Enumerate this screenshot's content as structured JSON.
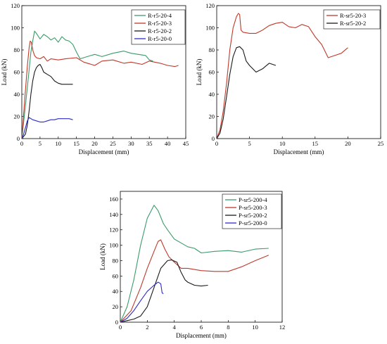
{
  "chart_data": [
    {
      "type": "line",
      "xlabel": "Displacement (mm)",
      "ylabel": "Load (kN)",
      "xlim": [
        0,
        45
      ],
      "ylim": [
        0,
        120
      ],
      "xticks": [
        0,
        5,
        10,
        15,
        20,
        25,
        30,
        35,
        40,
        45
      ],
      "yticks": [
        0,
        20,
        40,
        60,
        80,
        100,
        120
      ],
      "legend_position": "top-right",
      "series": [
        {
          "name": "R-r5-20-4",
          "color": "#3a9b6a",
          "x": [
            0,
            1,
            2,
            2.5,
            3,
            3.5,
            4,
            5,
            6,
            7,
            8,
            9,
            10,
            11,
            12,
            13,
            14,
            15,
            16,
            18,
            20,
            22,
            25,
            28,
            30,
            32,
            34,
            35,
            36
          ],
          "y": [
            0,
            30,
            62,
            78,
            88,
            97,
            95,
            90,
            94,
            92,
            89,
            91,
            87,
            92,
            89,
            88,
            85,
            78,
            72,
            74,
            76,
            74,
            77,
            79,
            77,
            76,
            75,
            71,
            70
          ]
        },
        {
          "name": "R-r5-20-3",
          "color": "#c0392b",
          "x": [
            0,
            0.8,
            1.5,
            2,
            2.3,
            2.6,
            3,
            3.5,
            4,
            5,
            6,
            7,
            8,
            10,
            12,
            15,
            17,
            20,
            22,
            25,
            28,
            30,
            33,
            35,
            38,
            40,
            42,
            43
          ],
          "y": [
            0,
            35,
            65,
            82,
            88,
            87,
            80,
            75,
            73,
            72,
            74,
            70,
            72,
            71,
            72,
            73,
            69,
            66,
            70,
            71,
            68,
            69,
            67,
            70,
            68,
            66,
            65,
            66
          ]
        },
        {
          "name": "R-r5-20-2",
          "color": "#1a1a1a",
          "x": [
            0,
            1,
            1.5,
            2,
            2.5,
            3,
            3.5,
            4,
            4.5,
            5,
            5.5,
            6,
            7,
            8,
            9,
            10,
            11,
            12,
            13,
            14
          ],
          "y": [
            0,
            4,
            12,
            25,
            40,
            52,
            60,
            64,
            66,
            67,
            64,
            60,
            58,
            56,
            52,
            50,
            49,
            49,
            49,
            49
          ]
        },
        {
          "name": "R-r5-20-0",
          "color": "#2c2cc8",
          "x": [
            0,
            0.5,
            1,
            1.5,
            2,
            3,
            4,
            5,
            6,
            7,
            8,
            9,
            10,
            11,
            12,
            13,
            14
          ],
          "y": [
            0,
            4,
            10,
            16,
            19,
            17,
            16,
            15,
            15,
            16,
            17,
            17,
            18,
            18,
            18,
            18,
            17
          ]
        }
      ]
    },
    {
      "type": "line",
      "xlabel": "Displacement (mm)",
      "ylabel": "Load (kN)",
      "xlim": [
        0,
        25
      ],
      "ylim": [
        0,
        120
      ],
      "xticks": [
        0,
        5,
        10,
        15,
        20,
        25
      ],
      "yticks": [
        0,
        20,
        40,
        60,
        80,
        100,
        120
      ],
      "legend_position": "top-right",
      "series": [
        {
          "name": "R-sr5-20-3",
          "color": "#c0392b",
          "x": [
            0,
            0.5,
            1,
            1.5,
            2,
            2.5,
            3,
            3.3,
            3.5,
            3.7,
            4,
            5,
            6,
            7,
            8,
            9,
            10,
            11,
            12,
            13,
            14,
            15,
            16,
            17,
            18,
            19,
            20
          ],
          "y": [
            0,
            8,
            25,
            50,
            80,
            100,
            110,
            113,
            112,
            98,
            96,
            95,
            95,
            98,
            102,
            104,
            105,
            101,
            100,
            103,
            101,
            92,
            85,
            73,
            75,
            77,
            82
          ]
        },
        {
          "name": "R-sr5-20-2",
          "color": "#1a1a1a",
          "x": [
            0,
            0.5,
            1,
            1.5,
            2,
            2.5,
            3,
            3.5,
            4,
            4.5,
            5,
            6,
            7,
            8,
            9
          ],
          "y": [
            0,
            5,
            18,
            38,
            58,
            74,
            82,
            83,
            80,
            70,
            66,
            60,
            63,
            68,
            66
          ]
        }
      ]
    },
    {
      "type": "line",
      "xlabel": "Displacement (mm)",
      "ylabel": "Load (kN)",
      "xlim": [
        0,
        12
      ],
      "ylim": [
        0,
        170
      ],
      "xticks": [
        0,
        2,
        4,
        6,
        8,
        10,
        12
      ],
      "yticks": [
        0,
        20,
        40,
        60,
        80,
        100,
        120,
        140,
        160
      ],
      "legend_position": "top-right",
      "series": [
        {
          "name": "P-sr5-200-4",
          "color": "#3a9b6a",
          "x": [
            0,
            0.5,
            1,
            1.5,
            2,
            2.5,
            2.8,
            3.2,
            3.5,
            4,
            4.5,
            5,
            5.5,
            6,
            7,
            8,
            9,
            10,
            11
          ],
          "y": [
            0,
            20,
            55,
            100,
            135,
            152,
            145,
            128,
            120,
            108,
            103,
            98,
            96,
            90,
            92,
            93,
            91,
            95,
            96
          ]
        },
        {
          "name": "P-sr5-200-3",
          "color": "#c0392b",
          "x": [
            0,
            0.8,
            1.5,
            2,
            2.5,
            2.8,
            3,
            3.3,
            3.6,
            4,
            4.5,
            5,
            6,
            7,
            8,
            9,
            10,
            11
          ],
          "y": [
            0,
            15,
            45,
            70,
            92,
            105,
            107,
            95,
            85,
            78,
            70,
            70,
            67,
            66,
            66,
            72,
            80,
            87
          ]
        },
        {
          "name": "P-sr5-200-2",
          "color": "#1a1a1a",
          "x": [
            0,
            0.5,
            1,
            1.5,
            2,
            2.5,
            3,
            3.5,
            3.8,
            4.2,
            4.5,
            4.8,
            5,
            5.5,
            6,
            6.5
          ],
          "y": [
            0,
            2,
            4,
            8,
            20,
            45,
            70,
            80,
            81,
            78,
            65,
            55,
            52,
            48,
            47,
            48
          ]
        },
        {
          "name": "P-sr5-200-0",
          "color": "#2c2cc8",
          "x": [
            0,
            0.5,
            1,
            1.5,
            2,
            2.5,
            2.8,
            3,
            3.1,
            3.2
          ],
          "y": [
            0,
            5,
            15,
            28,
            40,
            48,
            52,
            50,
            38,
            37
          ]
        }
      ]
    }
  ]
}
